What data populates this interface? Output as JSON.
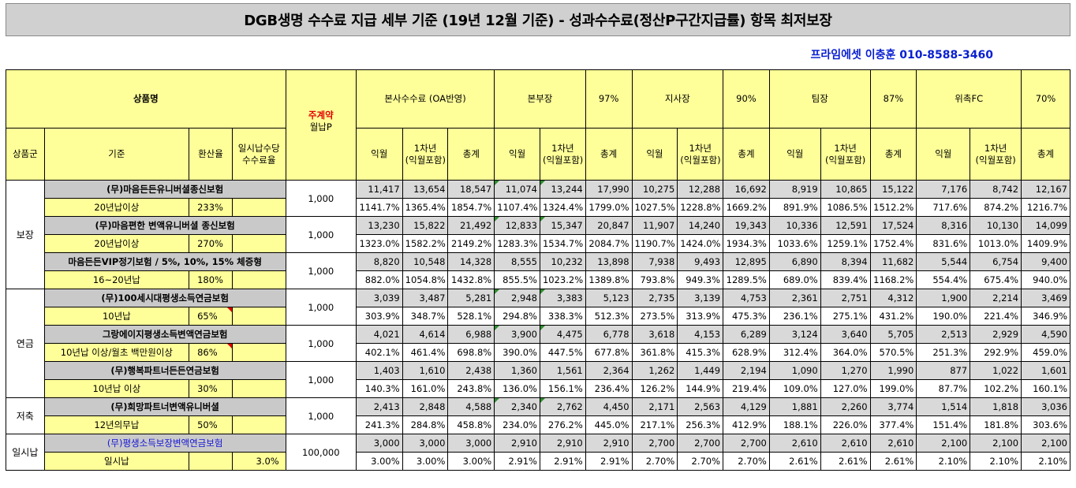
{
  "title": "DGB생명 수수료 지급 세부 기준 (19년 12월 기준) - 성과수수료(정산P구간지급률) 항목 최저보장",
  "contact": "프라임에셋 이충훈 010-8588-3460",
  "header": {
    "product_name": "상품명",
    "contract_red": "주계약",
    "contract_black": "월납P",
    "group": "상품군",
    "criteria": "기준",
    "conversion": "환산율",
    "lump_fee": "일시납수당\n수수료율",
    "sections": [
      {
        "name": "본사수수료 (OA반영)",
        "pct": ""
      },
      {
        "name": "본부장",
        "pct": "97%"
      },
      {
        "name": "지사장",
        "pct": "90%"
      },
      {
        "name": "팀장",
        "pct": "87%"
      },
      {
        "name": "위촉FC",
        "pct": "70%"
      }
    ],
    "sub": [
      "익월",
      "1차년\n(익월포함)",
      "총계"
    ]
  },
  "groups": [
    {
      "name": "보장",
      "products": [
        {
          "name": "(무)마음든든유니버셜종신보험",
          "criteria": "20년납이상",
          "rate": "233%",
          "lump": "",
          "premium": "1,000",
          "amounts": [
            "11,417",
            "13,654",
            "18,547",
            "11,074",
            "13,244",
            "17,990",
            "10,275",
            "12,288",
            "16,692",
            "8,919",
            "10,865",
            "15,122",
            "7,176",
            "8,742",
            "12,167"
          ],
          "percents": [
            "1141.7%",
            "1365.4%",
            "1854.7%",
            "1107.4%",
            "1324.4%",
            "1799.0%",
            "1027.5%",
            "1228.8%",
            "1669.2%",
            "891.9%",
            "1086.5%",
            "1512.2%",
            "717.6%",
            "874.2%",
            "1216.7%"
          ]
        },
        {
          "name": "(무)마음편한 변액유니버셜 종신보험",
          "criteria": "20년납이상",
          "rate": "270%",
          "lump": "",
          "premium": "1,000",
          "amounts": [
            "13,230",
            "15,822",
            "21,492",
            "12,833",
            "15,347",
            "20,847",
            "11,907",
            "14,240",
            "19,343",
            "10,336",
            "12,591",
            "17,524",
            "8,316",
            "10,130",
            "14,099"
          ],
          "percents": [
            "1323.0%",
            "1582.2%",
            "2149.2%",
            "1283.3%",
            "1534.7%",
            "2084.7%",
            "1190.7%",
            "1424.0%",
            "1934.3%",
            "1033.6%",
            "1259.1%",
            "1752.4%",
            "831.6%",
            "1013.0%",
            "1409.9%"
          ]
        },
        {
          "name": "마음든든VIP정기보험 / 5%, 10%, 15% 체증형",
          "criteria": "16~20년납",
          "rate": "180%",
          "lump": "",
          "premium": "1,000",
          "amounts": [
            "8,820",
            "10,548",
            "14,328",
            "8,555",
            "10,232",
            "13,898",
            "7,938",
            "9,493",
            "12,895",
            "6,890",
            "8,394",
            "11,682",
            "5,544",
            "6,754",
            "9,400"
          ],
          "percents": [
            "882.0%",
            "1054.8%",
            "1432.8%",
            "855.5%",
            "1023.2%",
            "1389.8%",
            "793.8%",
            "949.3%",
            "1289.5%",
            "689.0%",
            "839.4%",
            "1168.2%",
            "554.4%",
            "675.4%",
            "940.0%"
          ]
        }
      ]
    },
    {
      "name": "연금",
      "products": [
        {
          "name": "(무)100세시대평생소득연금보험",
          "criteria": "10년납",
          "rate": "65%",
          "lump": "",
          "premium": "1,000",
          "amounts": [
            "3,039",
            "3,487",
            "5,281",
            "2,948",
            "3,383",
            "5,123",
            "2,735",
            "3,139",
            "4,753",
            "2,361",
            "2,751",
            "4,312",
            "1,900",
            "2,214",
            "3,469"
          ],
          "percents": [
            "303.9%",
            "348.7%",
            "528.1%",
            "294.8%",
            "338.3%",
            "512.3%",
            "273.5%",
            "313.9%",
            "475.3%",
            "236.1%",
            "275.1%",
            "431.2%",
            "190.0%",
            "221.4%",
            "346.9%"
          ]
        },
        {
          "name": "그랑에이지평생소득변액연금보험",
          "criteria": "10년납 이상/월초 백만원이상",
          "rate": "86%",
          "lump": "",
          "premium": "1,000",
          "amounts": [
            "4,021",
            "4,614",
            "6,988",
            "3,900",
            "4,475",
            "6,778",
            "3,618",
            "4,153",
            "6,289",
            "3,124",
            "3,640",
            "5,705",
            "2,513",
            "2,929",
            "4,590"
          ],
          "percents": [
            "402.1%",
            "461.4%",
            "698.8%",
            "390.0%",
            "447.5%",
            "677.8%",
            "361.8%",
            "415.3%",
            "628.9%",
            "312.4%",
            "364.0%",
            "570.5%",
            "251.3%",
            "292.9%",
            "459.0%"
          ]
        },
        {
          "name": "(무)행복파트너든든연금보험",
          "criteria": "10년납 이상",
          "rate": "30%",
          "lump": "",
          "premium": "1,000",
          "amounts": [
            "1,403",
            "1,610",
            "2,438",
            "1,360",
            "1,561",
            "2,364",
            "1,262",
            "1,449",
            "2,194",
            "1,090",
            "1,270",
            "1,990",
            "877",
            "1,022",
            "1,601"
          ],
          "percents": [
            "140.3%",
            "161.0%",
            "243.8%",
            "136.0%",
            "156.1%",
            "236.4%",
            "126.2%",
            "144.9%",
            "219.4%",
            "109.0%",
            "127.0%",
            "199.0%",
            "87.7%",
            "102.2%",
            "160.1%"
          ]
        }
      ]
    },
    {
      "name": "저축",
      "products": [
        {
          "name": "(무)희망파트너변액유니버셜",
          "criteria": "12년의무납",
          "rate": "50%",
          "lump": "",
          "premium": "1,000",
          "amounts": [
            "2,413",
            "2,848",
            "4,588",
            "2,340",
            "2,762",
            "4,450",
            "2,171",
            "2,563",
            "4,129",
            "1,881",
            "2,260",
            "3,774",
            "1,514",
            "1,818",
            "3,036"
          ],
          "percents": [
            "241.3%",
            "284.8%",
            "458.8%",
            "234.0%",
            "276.2%",
            "445.0%",
            "217.1%",
            "256.3%",
            "412.9%",
            "188.1%",
            "226.0%",
            "377.4%",
            "151.4%",
            "181.8%",
            "303.6%"
          ]
        }
      ]
    },
    {
      "name": "일시납",
      "products": [
        {
          "name": "(무)평생소득보장변액연금보험",
          "criteria": "일시납",
          "rate": "",
          "lump": "3.0%",
          "premium": "100,000",
          "amounts": [
            "3,000",
            "3,000",
            "3,000",
            "2,910",
            "2,910",
            "2,910",
            "2,700",
            "2,700",
            "2,700",
            "2,610",
            "2,610",
            "2,610",
            "2,100",
            "2,100",
            "2,100"
          ],
          "percents": [
            "3.00%",
            "3.00%",
            "3.00%",
            "2.91%",
            "2.91%",
            "2.91%",
            "2.70%",
            "2.70%",
            "2.70%",
            "2.61%",
            "2.61%",
            "2.61%",
            "2.10%",
            "2.10%",
            "2.10%"
          ]
        }
      ]
    }
  ]
}
